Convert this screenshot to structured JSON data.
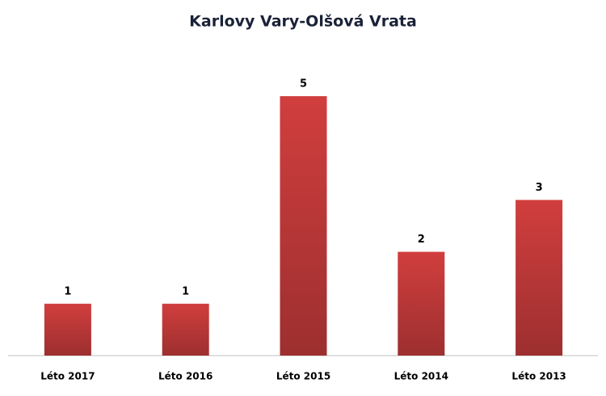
{
  "chart_data": {
    "type": "bar",
    "title": "Karlovy Vary-Olšová Vrata",
    "categories": [
      "Léto 2017",
      "Léto 2016",
      "Léto 2015",
      "Léto 2014",
      "Léto 2013"
    ],
    "values": [
      1,
      1,
      5,
      2,
      3
    ],
    "color": "#d13e3e"
  }
}
